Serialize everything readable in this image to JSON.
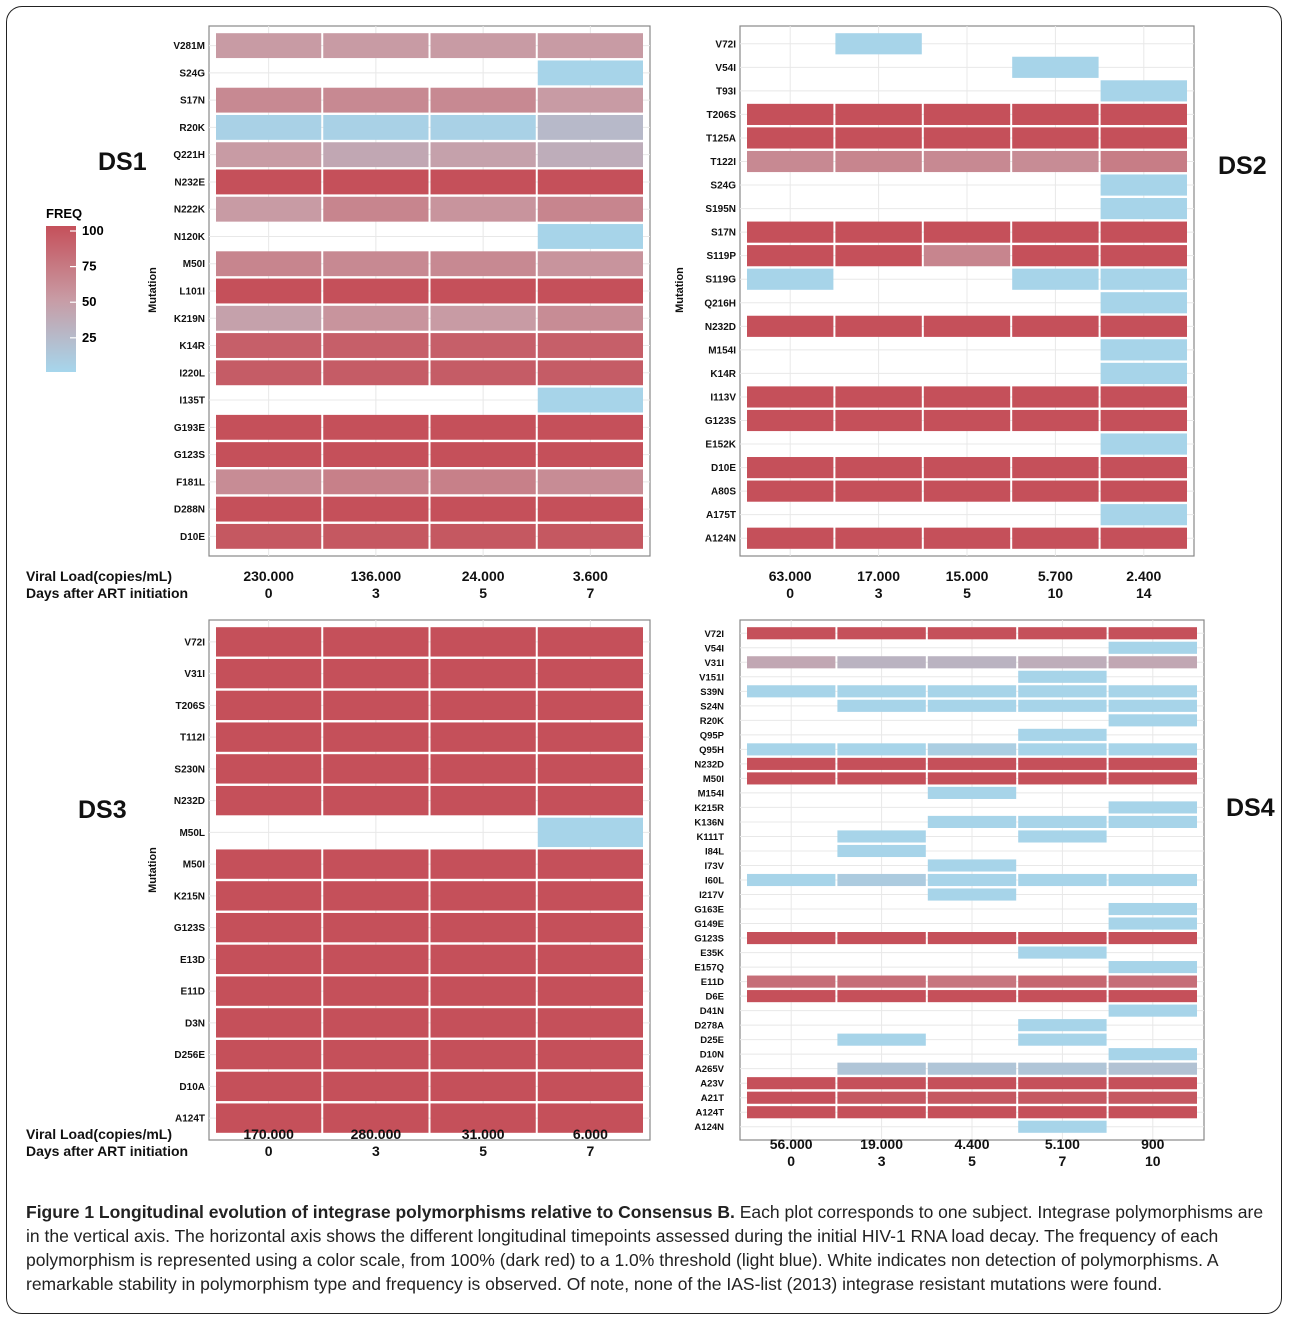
{
  "colors": {
    "high": "#c5505a",
    "mid": "#c89ba4",
    "low": "#a6d6ec",
    "grid": "#e8e8e8",
    "border": "#888888"
  },
  "legend": {
    "title": "FREQ",
    "ticks": [
      "100",
      "75",
      "50",
      "25"
    ]
  },
  "labels": {
    "viral_load": "Viral Load(copies/mL)",
    "days": "Days after ART initiation",
    "y_axis": "Mutation"
  },
  "caption": {
    "bold": "Figure 1 Longitudinal evolution of integrase polymorphisms relative to Consensus B.",
    "text": " Each plot corresponds to one subject. Integrase polymorphisms are in the vertical axis. The horizontal axis shows the different longitudinal timepoints assessed during the initial HIV-1 RNA load decay. The frequency of each polymorphism is represented using a color scale, from 100% (dark red) to a 1.0% threshold (light blue). White indicates non detection of polymorphisms. A remarkable stability in polymorphism type and frequency is observed. Of note, none of the IAS-list (2013) integrase resistant mutations were found."
  },
  "chart_data": [
    {
      "type": "heatmap",
      "title": "DS1",
      "viral_load": [
        "230.000",
        "136.000",
        "24.000",
        "3.600"
      ],
      "days": [
        "0",
        "3",
        "5",
        "7"
      ],
      "ylabel": "Mutation",
      "rows": [
        "V281M",
        "S24G",
        "S17N",
        "R20K",
        "Q221H",
        "N232E",
        "N222K",
        "N120K",
        "M50I",
        "L101I",
        "K219N",
        "K14R",
        "I220L",
        "I135T",
        "G193E",
        "G123S",
        "F181L",
        "D288N",
        "D10E"
      ],
      "values": [
        [
          50,
          50,
          50,
          50
        ],
        [
          null,
          null,
          null,
          3
        ],
        [
          62,
          62,
          62,
          50
        ],
        [
          5,
          5,
          5,
          25
        ],
        [
          50,
          40,
          45,
          35
        ],
        [
          100,
          100,
          100,
          100
        ],
        [
          50,
          65,
          55,
          65
        ],
        [
          null,
          null,
          null,
          3
        ],
        [
          65,
          62,
          62,
          55
        ],
        [
          100,
          100,
          100,
          100
        ],
        [
          45,
          55,
          50,
          60
        ],
        [
          90,
          90,
          90,
          90
        ],
        [
          92,
          92,
          92,
          92
        ],
        [
          null,
          null,
          null,
          3
        ],
        [
          100,
          100,
          100,
          100
        ],
        [
          100,
          100,
          100,
          100
        ],
        [
          60,
          68,
          68,
          60
        ],
        [
          100,
          100,
          100,
          100
        ],
        [
          95,
          95,
          95,
          95
        ]
      ]
    },
    {
      "type": "heatmap",
      "title": "DS2",
      "viral_load": [
        "63.000",
        "17.000",
        "15.000",
        "5.700",
        "2.400"
      ],
      "days": [
        "0",
        "3",
        "5",
        "10",
        "14"
      ],
      "ylabel": "Mutation",
      "rows": [
        "V72I",
        "V54I",
        "T93I",
        "T206S",
        "T125A",
        "T122I",
        "S24G",
        "S195N",
        "S17N",
        "S119P",
        "S119G",
        "Q216H",
        "N232D",
        "M154I",
        "K14R",
        "I113V",
        "G123S",
        "E152K",
        "D10E",
        "A80S",
        "A175T",
        "A124N"
      ],
      "values": [
        [
          null,
          3,
          null,
          null,
          null
        ],
        [
          null,
          null,
          null,
          3,
          null
        ],
        [
          null,
          null,
          null,
          null,
          3
        ],
        [
          100,
          100,
          100,
          100,
          100
        ],
        [
          100,
          100,
          100,
          100,
          100
        ],
        [
          62,
          65,
          62,
          60,
          70
        ],
        [
          null,
          null,
          null,
          null,
          3
        ],
        [
          null,
          null,
          null,
          null,
          3
        ],
        [
          100,
          100,
          100,
          100,
          100
        ],
        [
          100,
          100,
          65,
          100,
          100
        ],
        [
          3,
          null,
          null,
          3,
          3
        ],
        [
          null,
          null,
          null,
          null,
          3
        ],
        [
          100,
          100,
          100,
          100,
          100
        ],
        [
          null,
          null,
          null,
          null,
          3
        ],
        [
          null,
          null,
          null,
          null,
          3
        ],
        [
          100,
          100,
          100,
          100,
          100
        ],
        [
          100,
          100,
          100,
          100,
          100
        ],
        [
          null,
          null,
          null,
          null,
          3
        ],
        [
          100,
          100,
          100,
          100,
          100
        ],
        [
          100,
          100,
          100,
          100,
          100
        ],
        [
          null,
          null,
          null,
          null,
          3
        ],
        [
          100,
          100,
          100,
          100,
          100
        ]
      ]
    },
    {
      "type": "heatmap",
      "title": "DS3",
      "viral_load": [
        "170.000",
        "280.000",
        "31.000",
        "6.000"
      ],
      "days": [
        "0",
        "3",
        "5",
        "7"
      ],
      "ylabel": "Mutation",
      "rows": [
        "V72I",
        "V31I",
        "T206S",
        "T112I",
        "S230N",
        "N232D",
        "M50L",
        "M50I",
        "K215N",
        "G123S",
        "E13D",
        "E11D",
        "D3N",
        "D256E",
        "D10A",
        "A124T"
      ],
      "values": [
        [
          100,
          100,
          100,
          100
        ],
        [
          100,
          100,
          100,
          100
        ],
        [
          100,
          100,
          100,
          100
        ],
        [
          100,
          100,
          100,
          100
        ],
        [
          100,
          100,
          100,
          100
        ],
        [
          100,
          100,
          100,
          100
        ],
        [
          null,
          null,
          null,
          3
        ],
        [
          100,
          100,
          100,
          100
        ],
        [
          100,
          100,
          100,
          100
        ],
        [
          100,
          100,
          100,
          100
        ],
        [
          100,
          100,
          100,
          100
        ],
        [
          100,
          100,
          100,
          100
        ],
        [
          100,
          100,
          100,
          100
        ],
        [
          100,
          100,
          100,
          100
        ],
        [
          100,
          100,
          100,
          100
        ],
        [
          100,
          100,
          100,
          100
        ]
      ]
    },
    {
      "type": "heatmap",
      "title": "DS4",
      "viral_load": [
        "56.000",
        "19.000",
        "4.400",
        "5.100",
        "900"
      ],
      "days": [
        "0",
        "3",
        "5",
        "7",
        "10"
      ],
      "ylabel": "",
      "rows": [
        "V72I",
        "V54I",
        "V31I",
        "V151I",
        "S39N",
        "S24N",
        "R20K",
        "Q95P",
        "Q95H",
        "N232D",
        "M50I",
        "M154I",
        "K215R",
        "K136N",
        "K111T",
        "I84L",
        "I73V",
        "I60L",
        "I217V",
        "G163E",
        "G149E",
        "G123S",
        "E35K",
        "E157Q",
        "E11D",
        "D6E",
        "D41N",
        "D278A",
        "D25E",
        "D10N",
        "A265V",
        "A23V",
        "A21T",
        "A124T",
        "A124N"
      ],
      "values": [
        [
          100,
          100,
          100,
          100,
          100
        ],
        [
          null,
          null,
          null,
          null,
          3
        ],
        [
          40,
          30,
          30,
          35,
          40
        ],
        [
          null,
          null,
          null,
          3,
          null
        ],
        [
          3,
          3,
          3,
          3,
          3
        ],
        [
          null,
          3,
          3,
          3,
          3
        ],
        [
          null,
          null,
          null,
          null,
          3
        ],
        [
          null,
          null,
          null,
          3,
          null
        ],
        [
          3,
          3,
          8,
          3,
          3
        ],
        [
          100,
          100,
          100,
          100,
          100
        ],
        [
          100,
          100,
          100,
          100,
          100
        ],
        [
          null,
          null,
          3,
          null,
          null
        ],
        [
          null,
          null,
          null,
          null,
          3
        ],
        [
          null,
          null,
          3,
          3,
          3
        ],
        [
          null,
          3,
          null,
          3,
          null
        ],
        [
          null,
          3,
          null,
          null,
          null
        ],
        [
          null,
          null,
          3,
          null,
          null
        ],
        [
          3,
          10,
          3,
          3,
          3
        ],
        [
          null,
          null,
          3,
          null,
          null
        ],
        [
          null,
          null,
          null,
          null,
          3
        ],
        [
          null,
          null,
          null,
          null,
          3
        ],
        [
          100,
          100,
          100,
          100,
          100
        ],
        [
          null,
          null,
          null,
          3,
          null
        ],
        [
          null,
          null,
          null,
          null,
          3
        ],
        [
          80,
          80,
          75,
          85,
          80
        ],
        [
          100,
          100,
          100,
          100,
          100
        ],
        [
          null,
          null,
          null,
          null,
          3
        ],
        [
          null,
          null,
          null,
          3,
          null
        ],
        [
          null,
          3,
          null,
          3,
          null
        ],
        [
          null,
          null,
          null,
          null,
          3
        ],
        [
          null,
          15,
          15,
          15,
          18
        ],
        [
          100,
          100,
          100,
          100,
          100
        ],
        [
          100,
          95,
          95,
          95,
          95
        ],
        [
          100,
          100,
          100,
          100,
          100
        ],
        [
          null,
          null,
          null,
          3,
          null
        ]
      ]
    }
  ]
}
